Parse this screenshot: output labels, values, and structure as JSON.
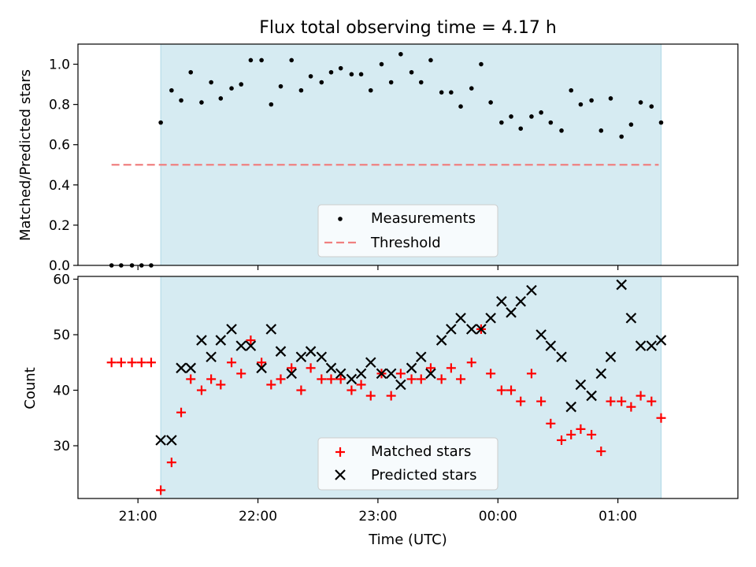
{
  "figure": {
    "title": "Flux total observing time = 4.17 h",
    "xlabel": "Time (UTC)",
    "x_tick_labels": [
      "21:00",
      "22:00",
      "23:00",
      "00:00",
      "01:00"
    ],
    "x_ticks_hours": [
      21,
      22,
      23,
      24,
      25
    ]
  },
  "chart_data": [
    {
      "type": "scatter",
      "ylabel": "Matched/Predicted stars",
      "xlim_hours": [
        20.5,
        26.0
      ],
      "ylim": [
        0.0,
        1.1
      ],
      "y_ticks": [
        0.0,
        0.2,
        0.4,
        0.6,
        0.8,
        1.0
      ],
      "y_tick_labels": [
        "0.0",
        "0.2",
        "0.4",
        "0.6",
        "0.8",
        "1.0"
      ],
      "observing_span_hours": [
        21.19,
        25.36
      ],
      "legend": {
        "placement": "lower center",
        "entries": [
          "Measurements",
          "Threshold"
        ]
      },
      "threshold": {
        "name": "Threshold",
        "y": 0.5,
        "x_range_hours": [
          20.78,
          25.34
        ],
        "color": "#f08080"
      },
      "series": [
        {
          "name": "Measurements",
          "color": "#000000",
          "marker": "dot",
          "x_hours": [
            20.78,
            20.86,
            20.95,
            21.03,
            21.11,
            21.19,
            21.28,
            21.36,
            21.44,
            21.53,
            21.61,
            21.69,
            21.78,
            21.86,
            21.94,
            22.03,
            22.11,
            22.19,
            22.28,
            22.36,
            22.44,
            22.53,
            22.61,
            22.69,
            22.78,
            22.86,
            22.94,
            23.03,
            23.11,
            23.19,
            23.28,
            23.36,
            23.44,
            23.53,
            23.61,
            23.69,
            23.78,
            23.86,
            23.94,
            24.03,
            24.11,
            24.19,
            24.28,
            24.36,
            24.44,
            24.53,
            24.61,
            24.69,
            24.78,
            24.86,
            24.94,
            25.03,
            25.11,
            25.19,
            25.28,
            25.36
          ],
          "y": [
            0.0,
            0.0,
            0.0,
            0.0,
            0.0,
            0.71,
            0.87,
            0.82,
            0.96,
            0.81,
            0.91,
            0.83,
            0.88,
            0.9,
            1.02,
            1.02,
            0.8,
            0.89,
            1.02,
            0.87,
            0.94,
            0.91,
            0.96,
            0.98,
            0.95,
            0.95,
            0.87,
            1.0,
            0.91,
            1.05,
            0.96,
            0.91,
            1.02,
            0.86,
            0.86,
            0.79,
            0.88,
            1.0,
            0.81,
            0.71,
            0.74,
            0.68,
            0.74,
            0.76,
            0.71,
            0.67,
            0.87,
            0.8,
            0.82,
            0.67,
            0.83,
            0.64,
            0.7,
            0.81,
            0.79,
            0.71
          ]
        }
      ]
    },
    {
      "type": "scatter",
      "ylabel": "Count",
      "xlabel": "Time (UTC)",
      "xlim_hours": [
        20.5,
        26.0
      ],
      "ylim": [
        20.5,
        60.5
      ],
      "y_ticks": [
        30,
        40,
        50,
        60
      ],
      "y_tick_labels": [
        "30",
        "40",
        "50",
        "60"
      ],
      "observing_span_hours": [
        21.19,
        25.36
      ],
      "legend": {
        "placement": "lower center",
        "entries": [
          "Matched stars",
          "Predicted stars"
        ]
      },
      "series": [
        {
          "name": "Matched stars",
          "color": "#ff0000",
          "marker": "plus",
          "x_hours": [
            20.78,
            20.86,
            20.95,
            21.03,
            21.11,
            21.19,
            21.28,
            21.36,
            21.44,
            21.53,
            21.61,
            21.69,
            21.78,
            21.86,
            21.94,
            22.03,
            22.11,
            22.19,
            22.28,
            22.36,
            22.44,
            22.53,
            22.61,
            22.69,
            22.78,
            22.86,
            22.94,
            23.03,
            23.11,
            23.19,
            23.28,
            23.36,
            23.44,
            23.53,
            23.61,
            23.69,
            23.78,
            23.86,
            23.94,
            24.03,
            24.11,
            24.19,
            24.28,
            24.36,
            24.44,
            24.53,
            24.61,
            24.69,
            24.78,
            24.86,
            24.94,
            25.03,
            25.11,
            25.19,
            25.28,
            25.36
          ],
          "y": [
            45,
            45,
            45,
            45,
            45,
            22,
            27,
            36,
            42,
            40,
            42,
            41,
            45,
            43,
            49,
            45,
            41,
            42,
            44,
            40,
            44,
            42,
            42,
            42,
            40,
            41,
            39,
            43,
            39,
            43,
            42,
            42,
            44,
            42,
            44,
            42,
            45,
            51,
            43,
            40,
            40,
            38,
            43,
            38,
            34,
            31,
            32,
            33,
            32,
            29,
            38,
            38,
            37,
            39,
            38,
            35
          ]
        },
        {
          "name": "Predicted stars",
          "color": "#000000",
          "marker": "x",
          "x_hours": [
            21.19,
            21.28,
            21.36,
            21.44,
            21.53,
            21.61,
            21.69,
            21.78,
            21.86,
            21.94,
            22.03,
            22.11,
            22.19,
            22.28,
            22.36,
            22.44,
            22.53,
            22.61,
            22.69,
            22.78,
            22.86,
            22.94,
            23.03,
            23.11,
            23.19,
            23.28,
            23.36,
            23.44,
            23.53,
            23.61,
            23.69,
            23.78,
            23.86,
            23.94,
            24.03,
            24.11,
            24.19,
            24.28,
            24.36,
            24.44,
            24.53,
            24.61,
            24.69,
            24.78,
            24.86,
            24.94,
            25.03,
            25.11,
            25.19,
            25.28,
            25.36
          ],
          "y": [
            31,
            31,
            44,
            44,
            49,
            46,
            49,
            51,
            48,
            48,
            44,
            51,
            47,
            43,
            46,
            47,
            46,
            44,
            43,
            42,
            43,
            45,
            43,
            43,
            41,
            44,
            46,
            43,
            49,
            51,
            53,
            51,
            51,
            53,
            56,
            54,
            56,
            58,
            50,
            48,
            46,
            37,
            41,
            39,
            43,
            46,
            59,
            53,
            48,
            48,
            49
          ]
        }
      ]
    }
  ]
}
